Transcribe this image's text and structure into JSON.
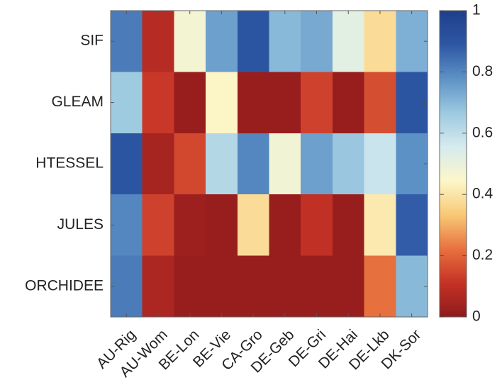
{
  "chart_data": {
    "type": "heatmap",
    "title": "",
    "xlabel": "",
    "ylabel": "",
    "x_categories": [
      "AU-Rig",
      "AU-Wom",
      "BE-Lon",
      "BE-Vie",
      "CA-Gro",
      "DE-Geb",
      "DE-Gri",
      "DE-Hai",
      "DE-Lkb",
      "DK-Sor"
    ],
    "y_categories": [
      "SIF",
      "GLEAM",
      "HTESSEL",
      "JULES",
      "ORCHIDEE"
    ],
    "values": [
      [
        0.82,
        0.08,
        0.47,
        0.75,
        0.9,
        0.7,
        0.73,
        0.52,
        0.38,
        0.72
      ],
      [
        0.66,
        0.12,
        0.02,
        0.44,
        0.02,
        0.02,
        0.14,
        0.02,
        0.16,
        0.9
      ],
      [
        0.9,
        0.05,
        0.15,
        0.62,
        0.8,
        0.48,
        0.75,
        0.67,
        0.58,
        0.78
      ],
      [
        0.8,
        0.14,
        0.03,
        0.02,
        0.38,
        0.02,
        0.1,
        0.02,
        0.41,
        0.88
      ],
      [
        0.82,
        0.06,
        0.02,
        0.02,
        0.02,
        0.02,
        0.02,
        0.02,
        0.22,
        0.7
      ]
    ],
    "colorbar": {
      "range": [
        0,
        1
      ],
      "ticks": [
        "0",
        "0.2",
        "0.4",
        "0.6",
        "0.8",
        "1"
      ],
      "colormap": "red-yellow-blue"
    },
    "colormap_stops": [
      "#8e1a1c",
      "#c53226",
      "#e8713f",
      "#f8c976",
      "#fcf7c8",
      "#d6ebef",
      "#9cc9e0",
      "#5d92c6",
      "#2e57a4",
      "#1e3f8a"
    ]
  }
}
